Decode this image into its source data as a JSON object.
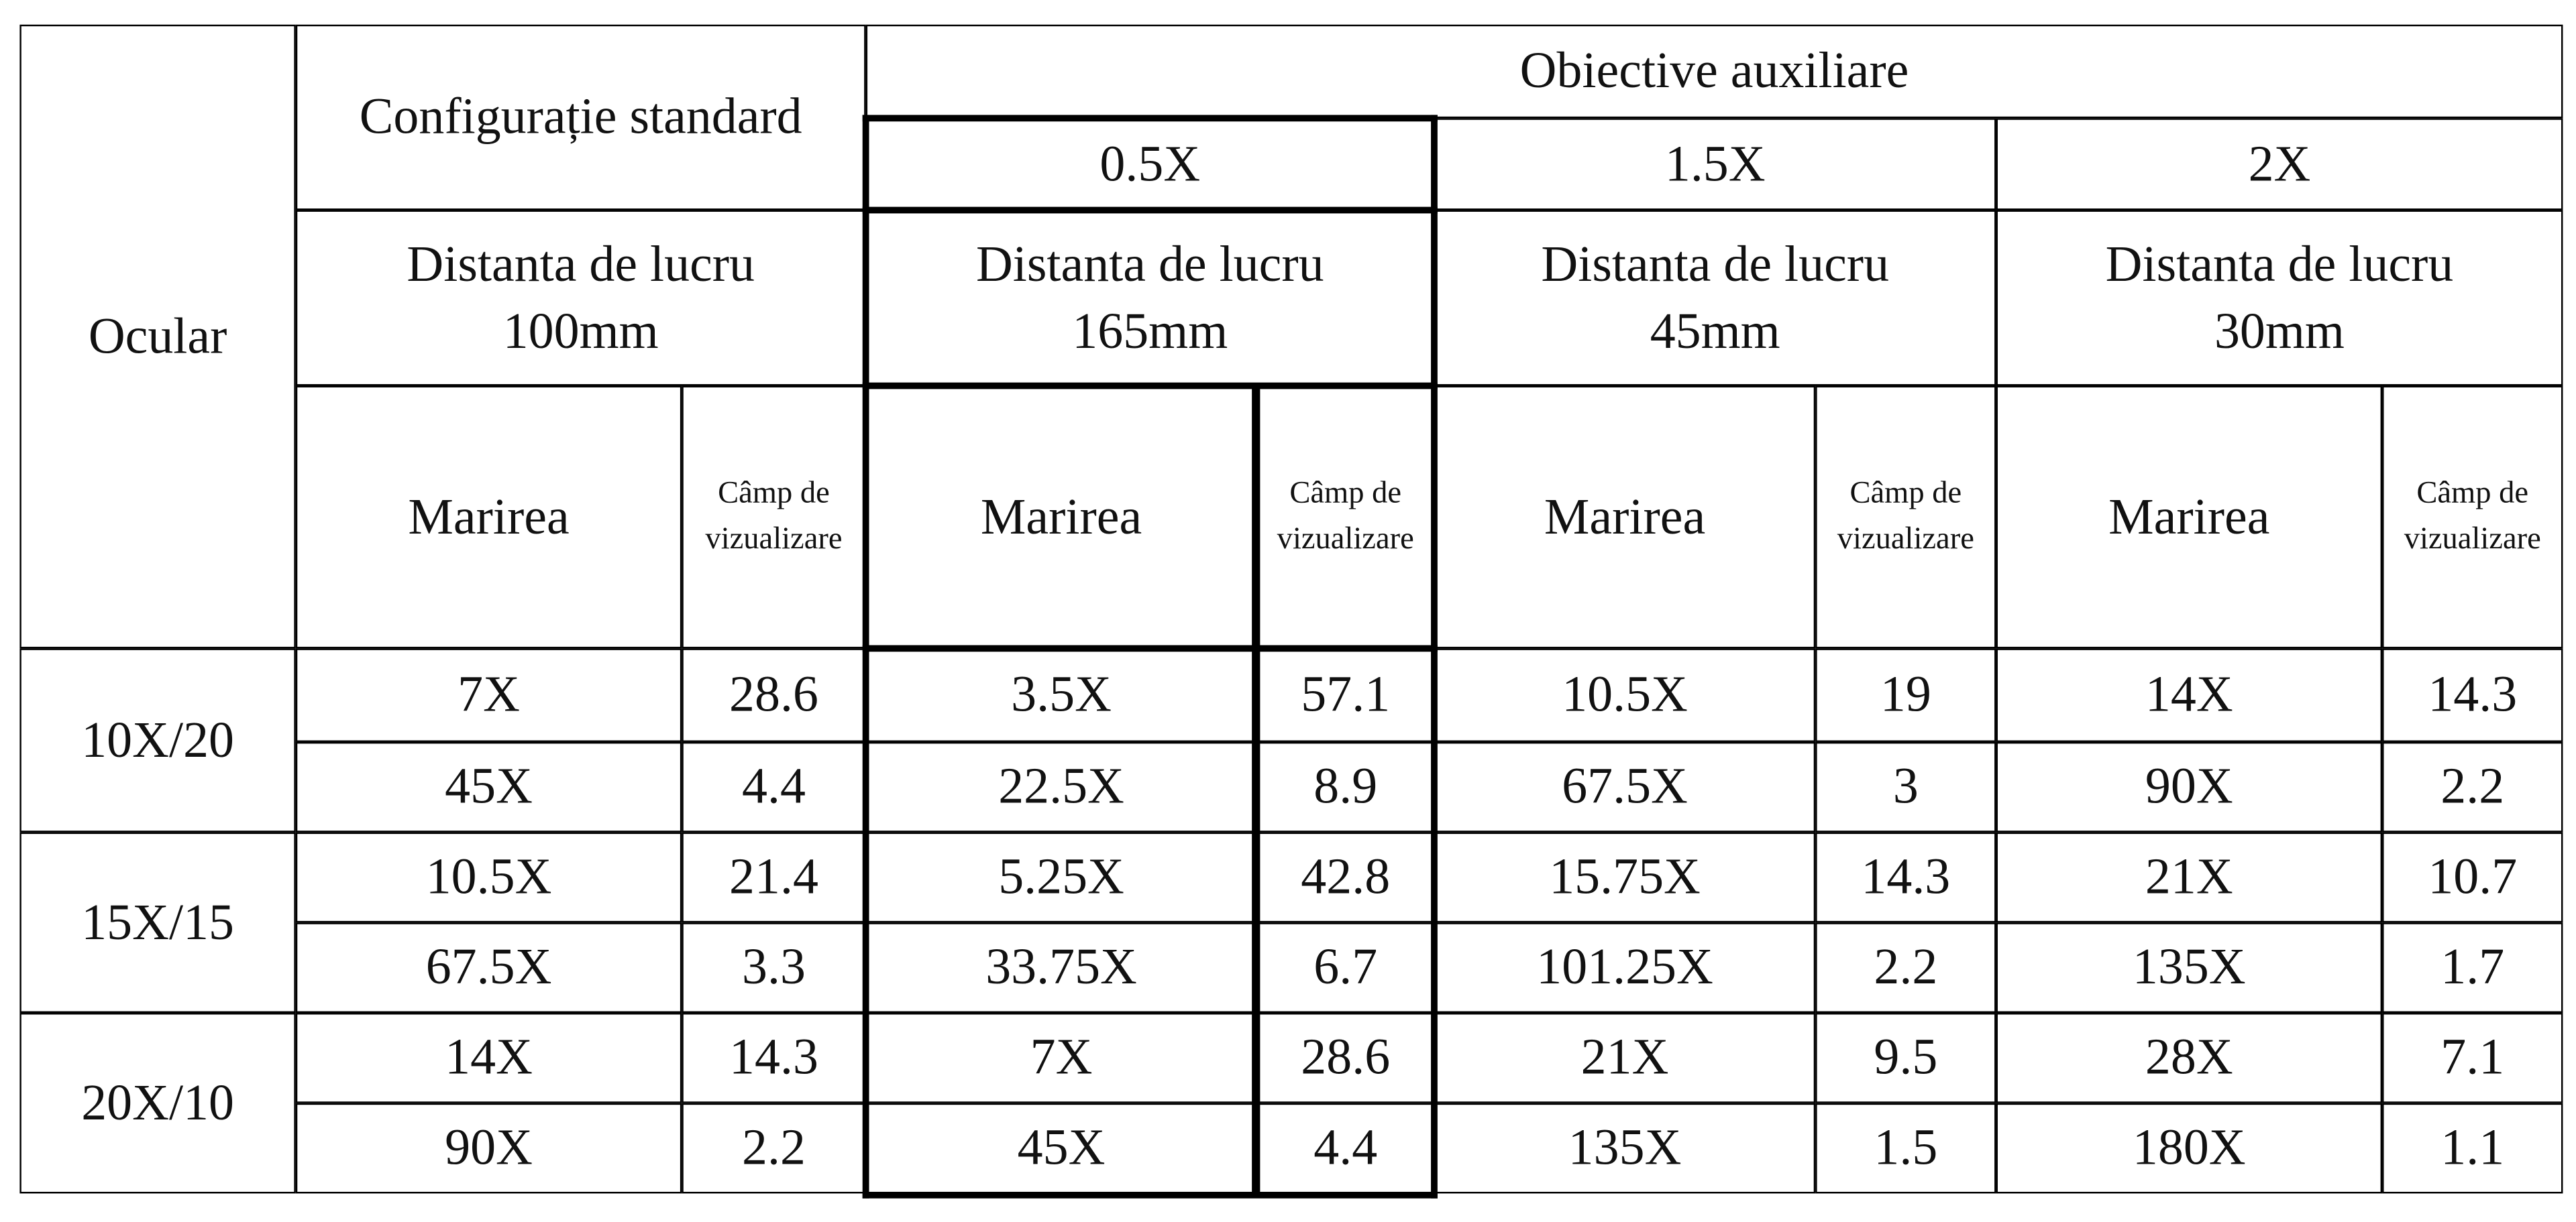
{
  "table": {
    "header": {
      "ocular": "Ocular",
      "standard": "Configurație standard",
      "auxiliary": "Obiective auxiliare",
      "objectives": [
        "0.5X",
        "1.5X",
        "2X"
      ],
      "groups": [
        {
          "distance_label": "Distanta de lucru",
          "distance": "100mm",
          "magnification": "Marirea",
          "field": "Câmp de vizualizare"
        },
        {
          "distance_label": "Distanta de lucru",
          "distance": "165mm",
          "magnification": "Marirea",
          "field": "Câmp de vizualizare"
        },
        {
          "distance_label": "Distanta de lucru",
          "distance": "45mm",
          "magnification": "Marirea",
          "field": "Câmp de vizualizare"
        },
        {
          "distance_label": "Distanta de lucru",
          "distance": "30mm",
          "magnification": "Marirea",
          "field": "Câmp de vizualizare"
        }
      ]
    },
    "rows": [
      {
        "eyepiece": "10X/20",
        "lines": [
          [
            "7X",
            "28.6",
            "3.5X",
            "57.1",
            "10.5X",
            "19",
            "14X",
            "14.3"
          ],
          [
            "45X",
            "4.4",
            "22.5X",
            "8.9",
            "67.5X",
            "3",
            "90X",
            "2.2"
          ]
        ]
      },
      {
        "eyepiece": "15X/15",
        "lines": [
          [
            "10.5X",
            "21.4",
            "5.25X",
            "42.8",
            "15.75X",
            "14.3",
            "21X",
            "10.7"
          ],
          [
            "67.5X",
            "3.3",
            "33.75X",
            "6.7",
            "101.25X",
            "2.2",
            "135X",
            "1.7"
          ]
        ]
      },
      {
        "eyepiece": "20X/10",
        "lines": [
          [
            "14X",
            "14.3",
            "7X",
            "28.6",
            "21X",
            "9.5",
            "28X",
            "7.1"
          ],
          [
            "90X",
            "2.2",
            "45X",
            "4.4",
            "135X",
            "1.5",
            "180X",
            "1.1"
          ]
        ]
      }
    ]
  }
}
